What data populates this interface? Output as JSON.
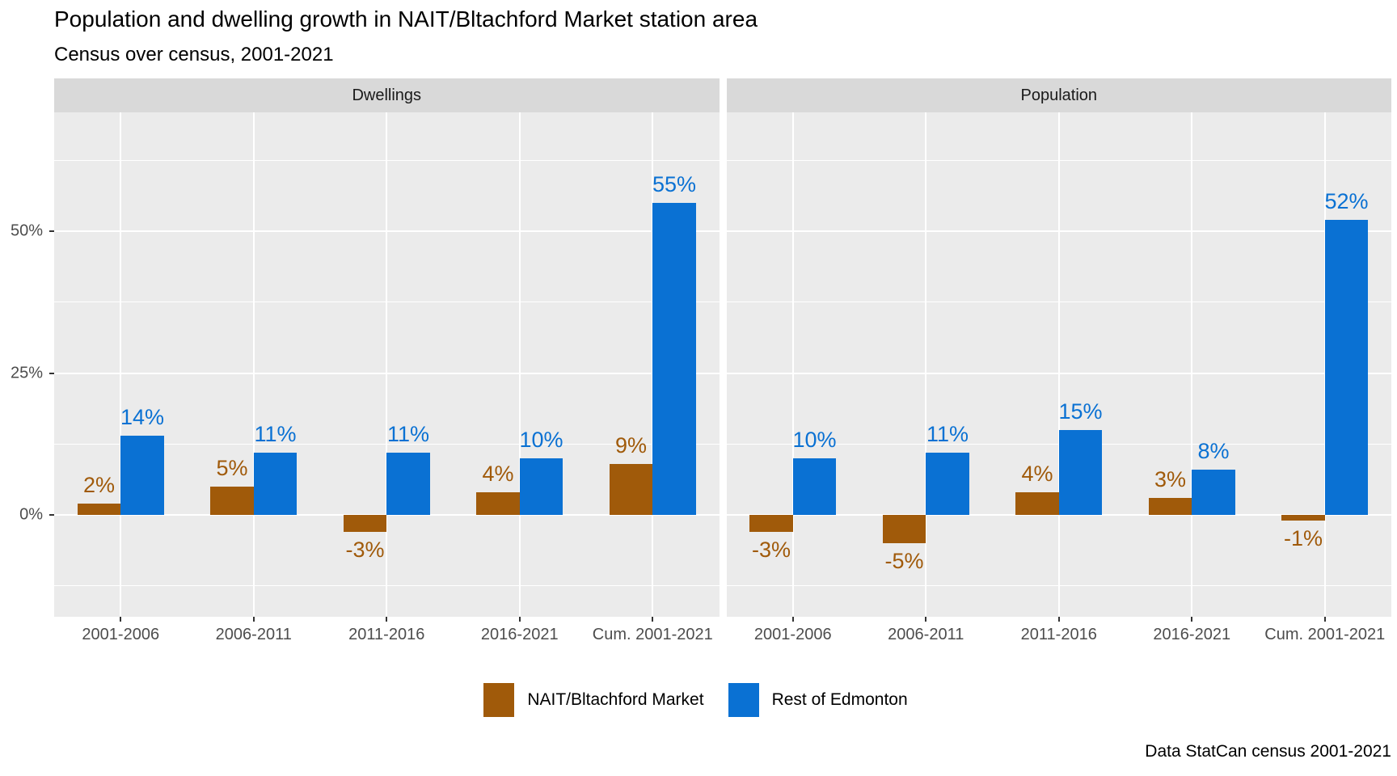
{
  "chart_data": {
    "type": "bar",
    "title": "Population and dwelling growth in NAIT/Bltachford Market station area",
    "subtitle": "Census over census, 2001-2021",
    "caption": "Data StatCan census 2001-2021",
    "categories": [
      "2001-2006",
      "2006-2011",
      "2011-2016",
      "2016-2021",
      "Cum. 2001-2021"
    ],
    "y_axis": {
      "unit": "%",
      "ticks": [
        0,
        25,
        50
      ],
      "tick_labels": [
        "0%",
        "25%",
        "50%"
      ],
      "minor_ticks": [
        -12.5,
        12.5,
        37.5,
        62.5
      ],
      "ylim": [
        -18,
        71
      ],
      "grid": "on"
    },
    "facets": [
      {
        "label": "Dwellings",
        "series": [
          {
            "name": "NAIT/Bltachford Market",
            "values": [
              2,
              5,
              -3,
              4,
              9
            ]
          },
          {
            "name": "Rest of Edmonton",
            "values": [
              14,
              11,
              11,
              10,
              55
            ]
          }
        ]
      },
      {
        "label": "Population",
        "series": [
          {
            "name": "NAIT/Bltachford Market",
            "values": [
              -3,
              -5,
              4,
              3,
              -1
            ]
          },
          {
            "name": "Rest of Edmonton",
            "values": [
              10,
              11,
              15,
              8,
              52
            ]
          }
        ]
      }
    ],
    "legend": {
      "position": "bottom",
      "items": [
        {
          "label": "NAIT/Bltachford Market",
          "color": "#A05A0A"
        },
        {
          "label": "Rest of Edmonton",
          "color": "#0A71D3"
        }
      ]
    },
    "colors": {
      "panel_bg": "#EBEBEB",
      "strip_bg": "#D9D9D9",
      "grid": "#FFFFFF",
      "axis_text": "#4D4D4D",
      "title_text": "#000000"
    }
  }
}
